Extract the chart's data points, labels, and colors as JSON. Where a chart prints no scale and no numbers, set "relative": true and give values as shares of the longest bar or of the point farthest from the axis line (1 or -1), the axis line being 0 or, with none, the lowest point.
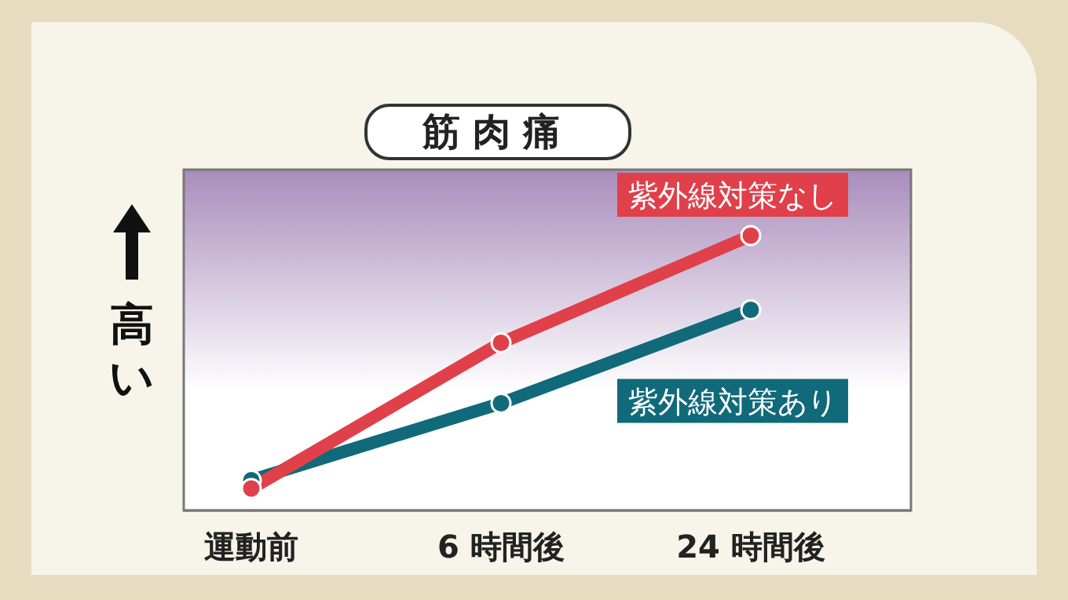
{
  "chart_data": {
    "type": "line",
    "title": "筋肉痛",
    "ylabel": "高い",
    "relative": true,
    "categories": [
      "運動前",
      "6 時間後",
      "24 時間後"
    ],
    "series": [
      {
        "name": "紫外線対策なし",
        "color": "#e0404a",
        "values": [
          0.08,
          0.61,
          1
        ]
      },
      {
        "name": "紫外線対策あり",
        "color": "#106a7a",
        "values": [
          0.11,
          0.39,
          0.73
        ]
      }
    ],
    "marker": "circle",
    "legend": false,
    "grid": false
  }
}
